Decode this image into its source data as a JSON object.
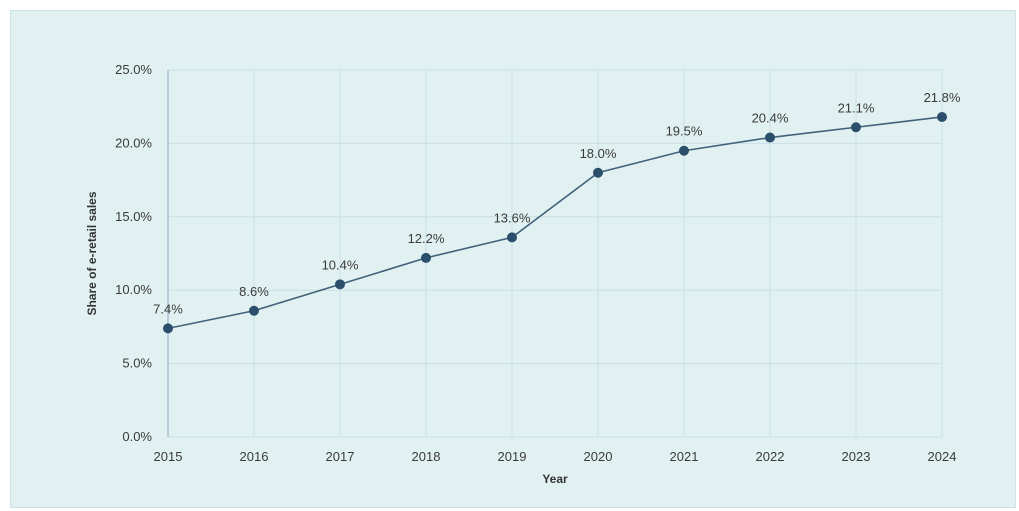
{
  "chart_data": {
    "type": "line",
    "title": "",
    "xlabel": "Year",
    "ylabel": "Share of e-retail sales",
    "x": [
      "2015",
      "2016",
      "2017",
      "2018",
      "2019",
      "2020",
      "2021",
      "2022",
      "2023",
      "2024"
    ],
    "series": [
      {
        "values": [
          7.4,
          8.6,
          10.4,
          12.2,
          13.6,
          18.0,
          19.5,
          20.4,
          21.1,
          21.8
        ]
      }
    ],
    "data_labels": [
      "7.4%",
      "8.6%",
      "10.4%",
      "12.2%",
      "13.6%",
      "18.0%",
      "19.5%",
      "20.4%",
      "21.1%",
      "21.8%"
    ],
    "ylim": [
      0,
      25
    ],
    "yticks": [
      0,
      5,
      10,
      15,
      20,
      25
    ],
    "ytick_labels": [
      "0.0%",
      "5.0%",
      "10.0%",
      "15.0%",
      "20.0%",
      "25.0%"
    ],
    "grid": true,
    "legend": "none",
    "colors": {
      "line": "#41627a",
      "marker": "#2b4f6b",
      "grid": "#c9dfe6",
      "background": "#e1f1f2"
    }
  }
}
